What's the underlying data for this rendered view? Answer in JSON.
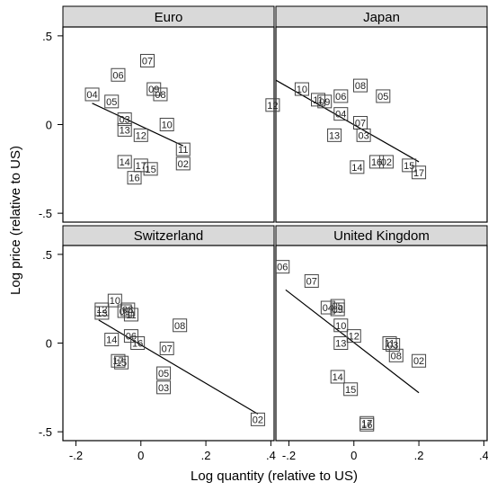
{
  "chart_data": {
    "type": "scatter",
    "layout": "2x2 small multiples with fitted lines",
    "xlabel": "Log quantity (relative to US)",
    "ylabel": "Log price (relative to US)",
    "xlim": [
      -0.24,
      0.41
    ],
    "ylim": [
      -0.55,
      0.55
    ],
    "x_ticks": [
      -0.2,
      0,
      0.2,
      0.4
    ],
    "x_tick_labels": [
      "-.2",
      "0",
      ".2",
      ".4"
    ],
    "y_ticks": [
      -0.5,
      0,
      0.5
    ],
    "y_tick_labels": [
      "-.5",
      "0",
      ".5"
    ],
    "grid": false,
    "colors": {
      "strip_fill": "#d9d9d9",
      "marker_edge": "#444444",
      "fit_line": "#000000",
      "frame": "#000000"
    },
    "panels": [
      {
        "title": "Euro",
        "points": [
          {
            "label": "07",
            "x": 0.02,
            "y": 0.36
          },
          {
            "label": "06",
            "x": -0.07,
            "y": 0.28
          },
          {
            "label": "09",
            "x": 0.04,
            "y": 0.2
          },
          {
            "label": "08",
            "x": 0.06,
            "y": 0.17
          },
          {
            "label": "04",
            "x": -0.15,
            "y": 0.17
          },
          {
            "label": "05",
            "x": -0.09,
            "y": 0.13
          },
          {
            "label": "03",
            "x": -0.05,
            "y": 0.03
          },
          {
            "label": "13",
            "x": -0.05,
            "y": -0.03
          },
          {
            "label": "10",
            "x": 0.08,
            "y": 0.0
          },
          {
            "label": "12",
            "x": 0.0,
            "y": -0.06
          },
          {
            "label": "11",
            "x": 0.13,
            "y": -0.14
          },
          {
            "label": "14",
            "x": -0.05,
            "y": -0.21
          },
          {
            "label": "17",
            "x": 0.0,
            "y": -0.23
          },
          {
            "label": "15",
            "x": 0.03,
            "y": -0.25
          },
          {
            "label": "02",
            "x": 0.13,
            "y": -0.22
          },
          {
            "label": "16",
            "x": -0.02,
            "y": -0.3
          }
        ],
        "fit_line": [
          {
            "x": -0.15,
            "y": 0.12
          },
          {
            "x": 0.13,
            "y": -0.12
          }
        ]
      },
      {
        "title": "Japan",
        "points": [
          {
            "label": "10",
            "x": -0.16,
            "y": 0.2
          },
          {
            "label": "08",
            "x": 0.02,
            "y": 0.22
          },
          {
            "label": "05",
            "x": 0.09,
            "y": 0.16
          },
          {
            "label": "06",
            "x": -0.04,
            "y": 0.16
          },
          {
            "label": "11",
            "x": -0.11,
            "y": 0.14
          },
          {
            "label": "09",
            "x": -0.09,
            "y": 0.13
          },
          {
            "label": "12",
            "x": -0.25,
            "y": 0.11
          },
          {
            "label": "04",
            "x": -0.04,
            "y": 0.06
          },
          {
            "label": "07",
            "x": 0.02,
            "y": 0.01
          },
          {
            "label": "13",
            "x": -0.06,
            "y": -0.06
          },
          {
            "label": "03",
            "x": 0.03,
            "y": -0.06
          },
          {
            "label": "14",
            "x": 0.01,
            "y": -0.24
          },
          {
            "label": "16",
            "x": 0.07,
            "y": -0.21
          },
          {
            "label": "02",
            "x": 0.1,
            "y": -0.21
          },
          {
            "label": "15",
            "x": 0.17,
            "y": -0.23
          },
          {
            "label": "17",
            "x": 0.2,
            "y": -0.27
          }
        ],
        "fit_line": [
          {
            "x": -0.24,
            "y": 0.25
          },
          {
            "x": 0.2,
            "y": -0.21
          }
        ]
      },
      {
        "title": "Switzerland",
        "points": [
          {
            "label": "10",
            "x": -0.08,
            "y": 0.24
          },
          {
            "label": "12",
            "x": -0.12,
            "y": 0.19
          },
          {
            "label": "13",
            "x": -0.12,
            "y": 0.17
          },
          {
            "label": "09",
            "x": -0.05,
            "y": 0.18
          },
          {
            "label": "08",
            "x": -0.04,
            "y": 0.19
          },
          {
            "label": "11",
            "x": -0.03,
            "y": 0.16
          },
          {
            "label": "08",
            "x": 0.12,
            "y": 0.1
          },
          {
            "label": "14",
            "x": -0.09,
            "y": 0.02
          },
          {
            "label": "06",
            "x": -0.03,
            "y": 0.04
          },
          {
            "label": "16",
            "x": -0.01,
            "y": 0.0
          },
          {
            "label": "07",
            "x": 0.08,
            "y": -0.03
          },
          {
            "label": "17",
            "x": -0.07,
            "y": -0.1
          },
          {
            "label": "15",
            "x": -0.06,
            "y": -0.11
          },
          {
            "label": "05",
            "x": 0.07,
            "y": -0.17
          },
          {
            "label": "03",
            "x": 0.07,
            "y": -0.25
          },
          {
            "label": "02",
            "x": 0.36,
            "y": -0.43
          }
        ],
        "fit_line": [
          {
            "x": -0.13,
            "y": 0.13
          },
          {
            "x": 0.36,
            "y": -0.4
          }
        ]
      },
      {
        "title": "United Kingdom",
        "points": [
          {
            "label": "06",
            "x": -0.22,
            "y": 0.43
          },
          {
            "label": "07",
            "x": -0.13,
            "y": 0.35
          },
          {
            "label": "04",
            "x": -0.08,
            "y": 0.2
          },
          {
            "label": "05",
            "x": -0.05,
            "y": 0.21
          },
          {
            "label": "09",
            "x": -0.05,
            "y": 0.19
          },
          {
            "label": "10",
            "x": -0.04,
            "y": 0.1
          },
          {
            "label": "12",
            "x": 0.0,
            "y": 0.04
          },
          {
            "label": "13",
            "x": -0.04,
            "y": 0.0
          },
          {
            "label": "11",
            "x": 0.11,
            "y": 0.0
          },
          {
            "label": "03",
            "x": 0.12,
            "y": -0.01
          },
          {
            "label": "08",
            "x": 0.13,
            "y": -0.07
          },
          {
            "label": "02",
            "x": 0.2,
            "y": -0.1
          },
          {
            "label": "14",
            "x": -0.05,
            "y": -0.19
          },
          {
            "label": "15",
            "x": -0.01,
            "y": -0.26
          },
          {
            "label": "17",
            "x": 0.04,
            "y": -0.45
          },
          {
            "label": "16",
            "x": 0.04,
            "y": -0.46
          }
        ],
        "fit_line": [
          {
            "x": -0.21,
            "y": 0.3
          },
          {
            "x": 0.2,
            "y": -0.28
          }
        ]
      }
    ]
  }
}
